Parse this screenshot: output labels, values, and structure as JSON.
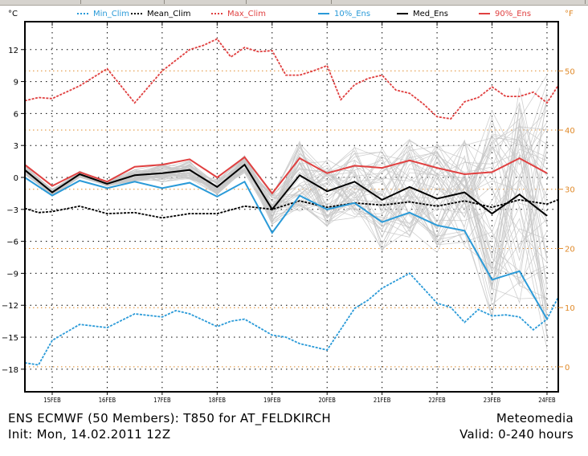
{
  "chart_data": {
    "type": "line",
    "title": "ENS ECMWF (50 Members): T850 for AT_FELDKIRCH",
    "subtitle": "Init: Mon, 14.02.2011 12Z",
    "credit": "Meteomedia",
    "valid": "Valid: 0-240 hours",
    "ylabel_left": "°C",
    "ylabel_right": "°F",
    "ylim": [
      -21,
      14.6
    ],
    "xlim": [
      14.5,
      24.2
    ],
    "grid": true,
    "legend_placement": "top",
    "yticks_left": [
      12,
      9,
      6,
      3,
      0,
      -3,
      -6,
      -9,
      -12,
      -15,
      -18
    ],
    "yticks_left_labels": [
      "12",
      "9",
      "6",
      "3",
      "0",
      "−3",
      "−6",
      "−9",
      "−12",
      "−15",
      "−18"
    ],
    "yticks_right_f": [
      50,
      40,
      30,
      20,
      10,
      0
    ],
    "yticks_right_labels": [
      "50",
      "40",
      "30",
      "20",
      "10",
      "0"
    ],
    "xticks": [
      15,
      16,
      17,
      18,
      19,
      20,
      21,
      22,
      23,
      24
    ],
    "xtick_labels": [
      "15FEB",
      "16FEB",
      "17FEB",
      "18FEB",
      "19FEB",
      "20FEB",
      "21FEB",
      "22FEB",
      "23FEB",
      "24FEB"
    ],
    "colors": {
      "min_clim": "#2a9ad8",
      "mean_clim": "#000000",
      "max_clim": "#e04040",
      "ens10": "#2a9ad8",
      "median": "#000000",
      "ens90": "#e04040",
      "members": "#c8c8c8",
      "fahrenheit": "#e08a2a",
      "grid": "#000000"
    },
    "legend": [
      {
        "key": "min_clim",
        "label": "Min_Clim",
        "style": "dashed"
      },
      {
        "key": "mean_clim",
        "label": "Mean_Clim",
        "style": "dashed"
      },
      {
        "key": "max_clim",
        "label": "Max_Clim",
        "style": "dashed"
      },
      {
        "key": "ens10",
        "label": "10%_Ens",
        "style": "solid"
      },
      {
        "key": "median",
        "label": "Med_Ens",
        "style": "solid"
      },
      {
        "key": "ens90",
        "label": "90%_Ens",
        "style": "solid"
      }
    ],
    "series": [
      {
        "name": "Max_Clim",
        "key": "max_clim",
        "style": "dashed",
        "x": [
          14.5,
          14.75,
          15.0,
          15.5,
          16.0,
          16.5,
          17.0,
          17.5,
          17.75,
          18.0,
          18.25,
          18.5,
          18.75,
          19.0,
          19.25,
          19.5,
          19.75,
          20.0,
          20.25,
          20.5,
          20.75,
          21.0,
          21.25,
          21.5,
          21.75,
          22.0,
          22.25,
          22.5,
          22.75,
          23.0,
          23.25,
          23.5,
          23.75,
          24.0,
          24.2
        ],
        "y": [
          7.2,
          7.5,
          7.4,
          8.6,
          10.2,
          7.0,
          10.0,
          12.0,
          12.4,
          13.0,
          11.3,
          12.2,
          11.8,
          11.9,
          9.6,
          9.6,
          10.0,
          10.5,
          7.3,
          8.7,
          9.3,
          9.6,
          8.2,
          7.9,
          6.9,
          5.7,
          5.5,
          7.1,
          7.5,
          8.5,
          7.6,
          7.6,
          8.0,
          7.0,
          8.6
        ]
      },
      {
        "name": "Mean_Clim",
        "key": "mean_clim",
        "style": "dashed",
        "x": [
          14.5,
          14.75,
          15.0,
          15.5,
          16.0,
          16.5,
          17.0,
          17.5,
          18.0,
          18.5,
          19.0,
          19.5,
          20.0,
          20.5,
          21.0,
          21.5,
          22.0,
          22.5,
          23.0,
          23.5,
          24.0,
          24.2
        ],
        "y": [
          -2.9,
          -3.3,
          -3.2,
          -2.7,
          -3.4,
          -3.3,
          -3.8,
          -3.4,
          -3.4,
          -2.7,
          -3.0,
          -2.2,
          -2.8,
          -2.4,
          -2.6,
          -2.3,
          -2.7,
          -2.2,
          -2.8,
          -2.1,
          -2.5,
          -2.1
        ]
      },
      {
        "name": "Min_Clim",
        "key": "min_clim",
        "style": "dashed",
        "x": [
          14.5,
          14.75,
          15.0,
          15.5,
          16.0,
          16.5,
          17.0,
          17.25,
          17.5,
          18.0,
          18.25,
          18.5,
          19.0,
          19.25,
          19.5,
          20.0,
          20.5,
          20.75,
          21.0,
          21.5,
          22.0,
          22.25,
          22.5,
          22.75,
          23.0,
          23.25,
          23.5,
          23.75,
          24.0,
          24.2
        ],
        "y": [
          -17.4,
          -17.6,
          -15.3,
          -13.8,
          -14.1,
          -12.8,
          -13.1,
          -12.5,
          -12.8,
          -14.0,
          -13.5,
          -13.3,
          -14.8,
          -15.0,
          -15.6,
          -16.2,
          -12.3,
          -11.5,
          -10.4,
          -9.0,
          -11.8,
          -12.2,
          -13.6,
          -12.4,
          -13.0,
          -12.9,
          -13.1,
          -14.3,
          -13.3,
          -11.3
        ]
      },
      {
        "name": "10%_Ens",
        "key": "ens10",
        "style": "solid",
        "x": [
          14.5,
          15.0,
          15.5,
          16.0,
          16.5,
          17.0,
          17.5,
          18.0,
          18.5,
          19.0,
          19.5,
          20.0,
          20.5,
          21.0,
          21.5,
          22.0,
          22.5,
          23.0,
          23.5,
          24.0
        ],
        "y": [
          0.0,
          -1.7,
          -0.3,
          -1.0,
          -0.4,
          -1.0,
          -0.5,
          -1.8,
          -0.4,
          -5.2,
          -1.7,
          -3.0,
          -2.4,
          -4.2,
          -3.3,
          -4.5,
          -5.0,
          -9.6,
          -8.8,
          -13.3
        ]
      },
      {
        "name": "Med_Ens",
        "key": "median",
        "style": "solid",
        "x": [
          14.5,
          15.0,
          15.5,
          16.0,
          16.5,
          17.0,
          17.5,
          18.0,
          18.5,
          19.0,
          19.5,
          20.0,
          20.5,
          21.0,
          21.5,
          22.0,
          22.5,
          23.0,
          23.5,
          24.0
        ],
        "y": [
          0.7,
          -1.4,
          0.3,
          -0.6,
          0.2,
          0.4,
          0.7,
          -0.9,
          1.2,
          -3.0,
          0.2,
          -1.3,
          -0.4,
          -2.1,
          -0.9,
          -2.0,
          -1.4,
          -3.4,
          -1.6,
          -3.6
        ]
      },
      {
        "name": "90%_Ens",
        "key": "ens90",
        "style": "solid",
        "x": [
          14.5,
          15.0,
          15.5,
          16.0,
          16.5,
          17.0,
          17.5,
          18.0,
          18.5,
          19.0,
          19.5,
          20.0,
          20.5,
          21.0,
          21.5,
          22.0,
          22.5,
          23.0,
          23.5,
          24.0
        ],
        "y": [
          1.2,
          -0.8,
          0.5,
          -0.4,
          1.0,
          1.2,
          1.7,
          0.0,
          1.9,
          -1.5,
          1.8,
          0.4,
          1.1,
          0.9,
          1.6,
          0.9,
          0.3,
          0.5,
          1.8,
          0.4
        ]
      }
    ],
    "members_note": "50 ensemble members drawn as thin grey lines between the 10% and 90% envelope with wider spread after 19FEB"
  }
}
